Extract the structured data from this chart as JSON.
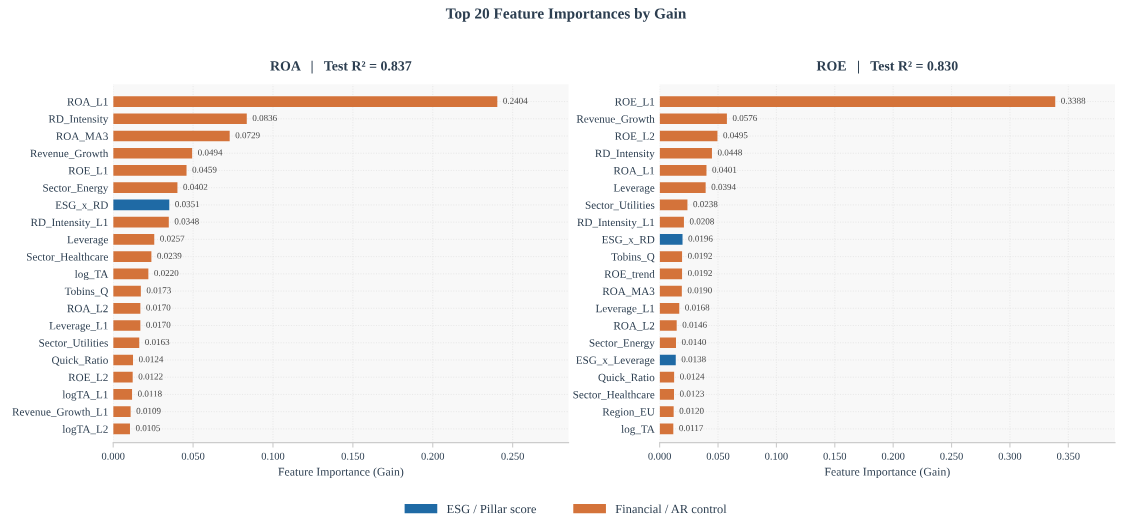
{
  "chart_data": [
    {
      "type": "bar",
      "orientation": "horizontal",
      "title": "Top 20 Feature Importances by Gain",
      "subtitle": "ROA   |   Test R² = 0.837",
      "xlabel": "Feature Importance (Gain)",
      "categories": [
        "ROA_L1",
        "RD_Intensity",
        "ROA_MA3",
        "Revenue_Growth",
        "ROE_L1",
        "Sector_Energy",
        "ESG_x_RD",
        "RD_Intensity_L1",
        "Leverage",
        "Sector_Healthcare",
        "log_TA",
        "Tobins_Q",
        "ROA_L2",
        "Leverage_L1",
        "Sector_Utilities",
        "Quick_Ratio",
        "ROE_L2",
        "logTA_L1",
        "Revenue_Growth_L1",
        "logTA_L2"
      ],
      "series": [
        {
          "name": "ESG / Pillar score",
          "color": "#1f6aa5",
          "values": [
            null,
            null,
            null,
            null,
            null,
            null,
            0.0351,
            null,
            null,
            null,
            null,
            null,
            null,
            null,
            null,
            null,
            null,
            null,
            null,
            null
          ],
          "value_labels": [
            null,
            null,
            null,
            null,
            null,
            null,
            "0.0351",
            null,
            null,
            null,
            null,
            null,
            null,
            null,
            null,
            null,
            null,
            null,
            null,
            null
          ]
        },
        {
          "name": "Financial / AR control",
          "color": "#d4733a",
          "values": [
            0.2404,
            0.0836,
            0.0729,
            0.0494,
            0.0459,
            0.0402,
            null,
            0.0348,
            0.0257,
            0.0239,
            0.022,
            0.0173,
            0.017,
            0.017,
            0.0163,
            0.0124,
            0.0122,
            0.0118,
            0.0109,
            0.0105
          ],
          "value_labels": [
            "0.2404",
            "0.0836",
            "0.0729",
            "0.0494",
            "0.0459",
            "0.0402",
            null,
            "0.0348",
            "0.0257",
            "0.0239",
            "0.0220",
            "0.0173",
            "0.0170",
            "0.0170",
            "0.0163",
            "0.0124",
            "0.0122",
            "0.0118",
            "0.0109",
            "0.0105"
          ]
        }
      ],
      "xlim": [
        0,
        0.285
      ],
      "xticks": [
        {
          "value": 0,
          "label": "0.000"
        },
        {
          "value": 0.05,
          "label": "0.050"
        },
        {
          "value": 0.1,
          "label": "0.100"
        },
        {
          "value": 0.15,
          "label": "0.150"
        },
        {
          "value": 0.2,
          "label": "0.200"
        },
        {
          "value": 0.25,
          "label": "0.250"
        }
      ],
      "grid": true,
      "legend": "bottom"
    },
    {
      "type": "bar",
      "orientation": "horizontal",
      "subtitle": "ROE   |   Test R² = 0.830",
      "xlabel": "Feature Importance (Gain)",
      "categories": [
        "ROE_L1",
        "Revenue_Growth",
        "ROE_L2",
        "RD_Intensity",
        "ROA_L1",
        "Leverage",
        "Sector_Utilities",
        "RD_Intensity_L1",
        "ESG_x_RD",
        "Tobins_Q",
        "ROE_trend",
        "ROA_MA3",
        "Leverage_L1",
        "ROA_L2",
        "Sector_Energy",
        "ESG_x_Leverage",
        "Quick_Ratio",
        "Sector_Healthcare",
        "Region_EU",
        "log_TA"
      ],
      "series": [
        {
          "color": "#1f6aa5",
          "values": [
            null,
            null,
            null,
            null,
            null,
            null,
            null,
            null,
            0.0196,
            null,
            null,
            null,
            null,
            null,
            null,
            0.0138,
            null,
            null,
            null,
            null
          ],
          "value_labels": [
            null,
            null,
            null,
            null,
            null,
            null,
            null,
            null,
            "0.0196",
            null,
            null,
            null,
            null,
            null,
            null,
            "0.0138",
            null,
            null,
            null,
            null
          ]
        },
        {
          "color": "#d4733a",
          "values": [
            0.3388,
            0.0576,
            0.0495,
            0.0448,
            0.0401,
            0.0394,
            0.0238,
            0.0208,
            null,
            0.0192,
            0.0192,
            0.019,
            0.0168,
            0.0146,
            0.014,
            null,
            0.0124,
            0.0123,
            0.012,
            0.0117
          ],
          "value_labels": [
            "0.3388",
            "0.0576",
            "0.0495",
            "0.0448",
            "0.0401",
            "0.0394",
            "0.0238",
            "0.0208",
            null,
            "0.0192",
            "0.0192",
            "0.0190",
            "0.0168",
            "0.0146",
            "0.0140",
            null,
            "0.0124",
            "0.0123",
            "0.0120",
            "0.0117"
          ]
        }
      ],
      "xlim": [
        0,
        0.39
      ],
      "xticks": [
        {
          "value": 0,
          "label": "0.000"
        },
        {
          "value": 0.05,
          "label": "0.050"
        },
        {
          "value": 0.1,
          "label": "0.100"
        },
        {
          "value": 0.15,
          "label": "0.150"
        },
        {
          "value": 0.2,
          "label": "0.200"
        },
        {
          "value": 0.25,
          "label": "0.250"
        },
        {
          "value": 0.3,
          "label": "0.300"
        },
        {
          "value": 0.35,
          "label": "0.350"
        }
      ],
      "grid": true
    }
  ]
}
